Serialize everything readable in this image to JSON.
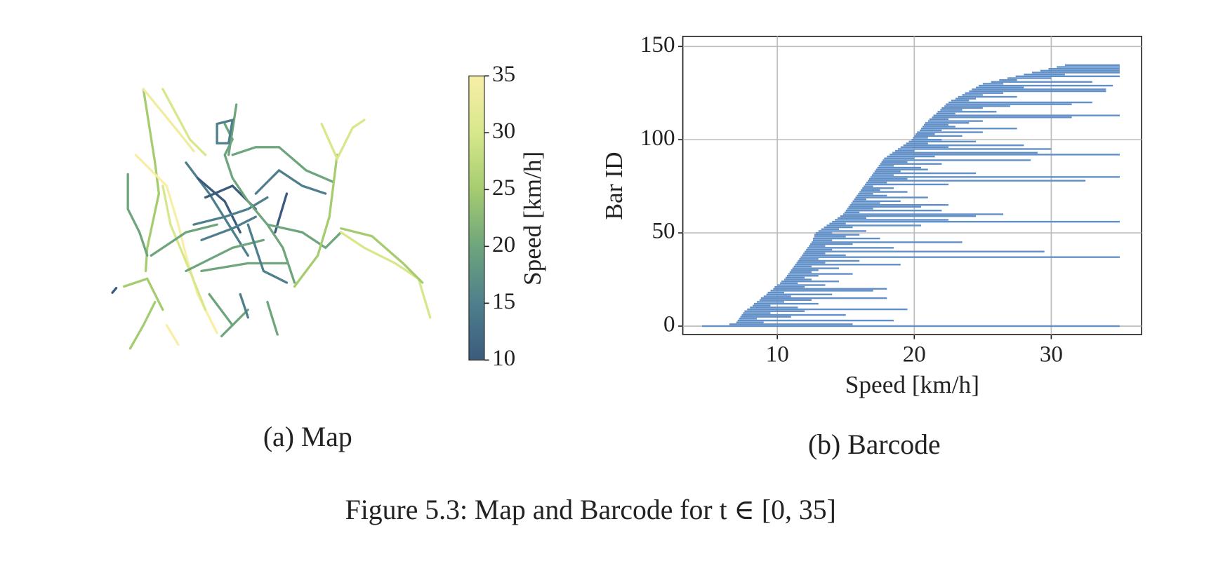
{
  "figure": {
    "caption": "Figure 5.3: Map and Barcode for t ∈ [0, 35]"
  },
  "chart_data": [
    {
      "type": "map",
      "caption": "(a) Map",
      "colorbar_label": "Speed [km/h]",
      "clim": [
        10,
        35
      ],
      "cticks": [
        10,
        15,
        20,
        25,
        30,
        35
      ],
      "colormap": [
        "#3b5b7e",
        "#4f7f8c",
        "#6ea57c",
        "#a6cc70",
        "#d8e78b",
        "#f7efa6"
      ]
    },
    {
      "type": "barcode",
      "caption": "(b) Barcode",
      "xlabel": "Speed [km/h]",
      "ylabel": "Bar ID",
      "color": "#6190c8",
      "grid": true,
      "xlim": [
        3.1,
        36.6
      ],
      "xticks": [
        10,
        20,
        30
      ],
      "ylim": [
        -4.5,
        155.4
      ],
      "yticks": [
        0,
        50,
        100,
        150
      ],
      "starts": [
        4.5,
        6.5,
        7.0,
        7.1,
        7.2,
        7.3,
        7.4,
        7.5,
        7.6,
        7.8,
        8.0,
        8.2,
        8.3,
        8.5,
        8.7,
        8.8,
        9.0,
        9.2,
        9.3,
        9.5,
        9.7,
        9.8,
        10.0,
        10.2,
        10.3,
        10.5,
        10.6,
        10.7,
        10.8,
        10.9,
        11.0,
        11.1,
        11.2,
        11.3,
        11.4,
        11.5,
        11.6,
        11.7,
        11.8,
        11.9,
        12.0,
        12.1,
        12.2,
        12.3,
        12.4,
        12.5,
        12.6,
        12.6,
        12.7,
        12.7,
        12.8,
        13.0,
        13.2,
        13.4,
        13.6,
        13.8,
        14.0,
        14.2,
        14.4,
        14.6,
        14.8,
        14.9,
        15.0,
        15.1,
        15.2,
        15.3,
        15.4,
        15.5,
        15.6,
        15.7,
        15.8,
        15.9,
        16.0,
        16.1,
        16.2,
        16.3,
        16.4,
        16.5,
        16.6,
        16.7,
        16.8,
        16.9,
        17.0,
        17.1,
        17.2,
        17.3,
        17.4,
        17.5,
        17.6,
        17.7,
        17.8,
        18.0,
        18.2,
        18.4,
        18.6,
        18.8,
        19.0,
        19.2,
        19.4,
        19.6,
        19.8,
        19.9,
        20.0,
        20.1,
        20.2,
        20.4,
        20.5,
        20.6,
        20.7,
        20.8,
        21.0,
        21.1,
        21.3,
        21.4,
        21.6,
        21.7,
        21.9,
        22.0,
        22.2,
        22.3,
        22.5,
        22.7,
        23.0,
        23.2,
        23.5,
        23.7,
        24.0,
        24.2,
        24.5,
        24.7,
        25.0,
        25.6,
        26.2,
        26.8,
        27.4,
        28.0,
        28.6,
        29.2,
        29.8,
        30.4,
        31.0
      ],
      "ends": [
        35,
        15.5,
        9.0,
        18.5,
        8.5,
        11.0,
        15.0,
        9.5,
        12.0,
        19.5,
        11.5,
        9.5,
        13.0,
        10.5,
        12.5,
        18.0,
        11.0,
        14.0,
        10.5,
        17.0,
        18.0,
        12.0,
        13.5,
        11.5,
        14.5,
        12.5,
        12.0,
        13.0,
        15.5,
        12.5,
        13.0,
        14.5,
        12.5,
        19.0,
        13.5,
        16.0,
        13.0,
        35,
        15.0,
        13.5,
        29.5,
        14.0,
        18.5,
        13.5,
        15.5,
        23.5,
        14.0,
        17.5,
        15.0,
        16.0,
        14.0,
        16.5,
        14.5,
        15.5,
        20.5,
        15.0,
        35,
        22.5,
        16.5,
        24.5,
        26.5,
        16.0,
        22.0,
        17.0,
        20.5,
        22.5,
        17.5,
        19.0,
        16.5,
        21.0,
        18.0,
        17.0,
        19.5,
        17.5,
        18.5,
        17.0,
        22.5,
        18.0,
        32.5,
        19.5,
        35,
        18.5,
        24.5,
        19.0,
        21.0,
        20.5,
        18.5,
        22.0,
        19.5,
        28.5,
        20.0,
        21.5,
        35,
        29.0,
        20.0,
        30.0,
        22.5,
        28.0,
        21.0,
        24.5,
        22.0,
        21.0,
        23.5,
        21.5,
        25.0,
        22.0,
        27.5,
        23.0,
        22.5,
        24.0,
        25.0,
        22.5,
        31.5,
        35,
        23.0,
        26.0,
        23.5,
        25.0,
        27.0,
        31.5,
        33.0,
        24.0,
        24.5,
        27.5,
        25.0,
        26.5,
        34.0,
        34.0,
        28.0,
        34.5,
        26.5,
        33.0,
        27.5,
        30.0,
        35,
        31.0,
        35,
        35,
        35,
        35,
        35
      ]
    }
  ]
}
